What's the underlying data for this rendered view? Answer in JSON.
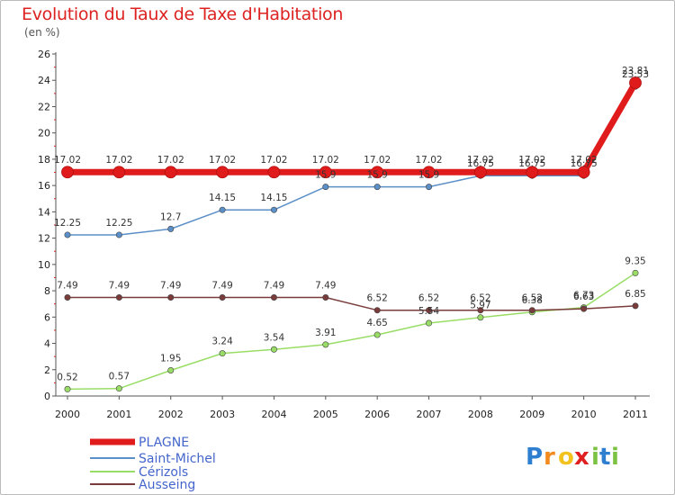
{
  "title": "Evolution du Taux de Taxe d'Habitation",
  "unit_label": "(en %)",
  "logo": {
    "text": "Proxiti",
    "letters": [
      "P",
      "r",
      "o",
      "x",
      "i",
      "t",
      "i"
    ]
  },
  "chart_data": {
    "type": "line",
    "title": "Evolution du Taux de Taxe d'Habitation",
    "ylabel": "(en %)",
    "xlabel": "",
    "x": [
      2000,
      2001,
      2002,
      2003,
      2004,
      2005,
      2006,
      2007,
      2008,
      2009,
      2010,
      2011
    ],
    "ylim": [
      0,
      26
    ],
    "yticks": [
      0,
      2,
      4,
      6,
      8,
      10,
      12,
      14,
      16,
      18,
      20,
      22,
      24,
      26
    ],
    "grid": false,
    "legend_position": "bottom-left",
    "series": [
      {
        "name": "PLAGNE",
        "color": "#e01b1b",
        "values": [
          17.02,
          17.02,
          17.02,
          17.02,
          17.02,
          17.02,
          17.02,
          17.02,
          17.02,
          17.02,
          17.02,
          23.81
        ],
        "labels": [
          "17.02",
          "17.02",
          "17.02",
          "17.02",
          "17.02",
          "17.02",
          "17.02",
          "17.02",
          "17.02",
          "17.02",
          "17.02",
          "23.81"
        ]
      },
      {
        "name": "Saint-Michel",
        "color": "#5b8fc7",
        "values": [
          12.25,
          12.25,
          12.7,
          14.15,
          14.15,
          15.9,
          15.9,
          15.9,
          16.75,
          16.75,
          16.75,
          23.53
        ],
        "labels": [
          "12.25",
          "12.25",
          "12.7",
          "14.15",
          "14.15",
          "15.9",
          "15.9",
          "15.9",
          "16.75",
          "16.75",
          "16.75",
          "23.53"
        ]
      },
      {
        "name": "Cérizols",
        "color": "#99dd66",
        "values": [
          0.52,
          0.57,
          1.95,
          3.24,
          3.54,
          3.91,
          4.65,
          5.54,
          5.97,
          6.38,
          6.73,
          9.35
        ],
        "labels": [
          "0.52",
          "0.57",
          "1.95",
          "3.24",
          "3.54",
          "3.91",
          "4.65",
          "5.54",
          "5.97",
          "6.38",
          "6.73",
          "9.35"
        ]
      },
      {
        "name": "Ausseing",
        "color": "#7a3b3b",
        "values": [
          7.49,
          7.49,
          7.49,
          7.49,
          7.49,
          7.49,
          6.52,
          6.52,
          6.52,
          6.52,
          6.63,
          6.85
        ],
        "labels": [
          "7.49",
          "7.49",
          "7.49",
          "7.49",
          "7.49",
          "7.49",
          "6.52",
          "6.52",
          "6.52",
          "6.52",
          "6.63",
          "6.85"
        ]
      }
    ]
  }
}
